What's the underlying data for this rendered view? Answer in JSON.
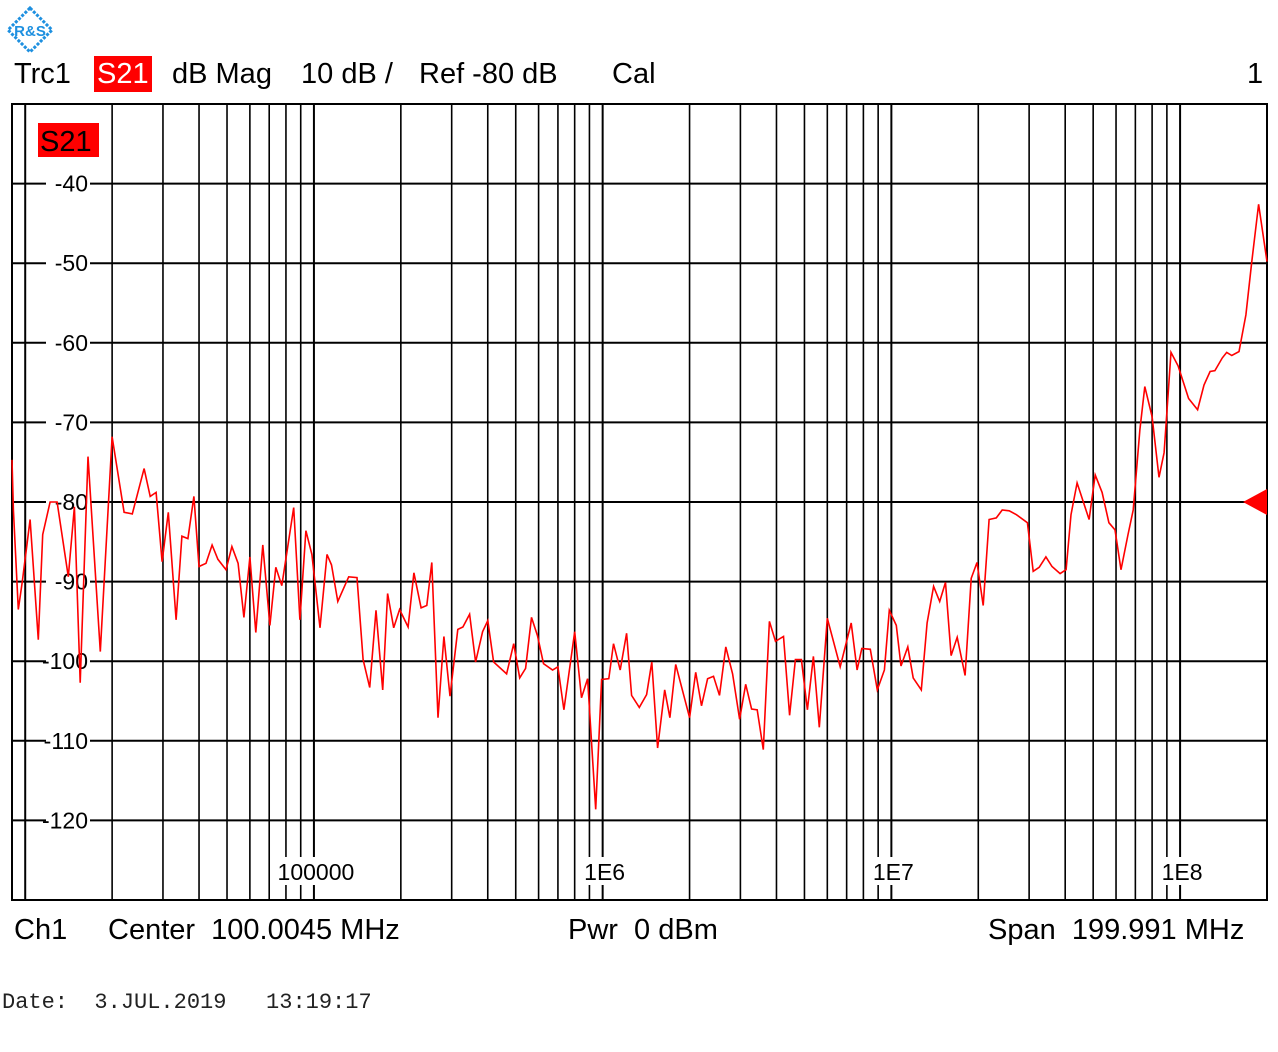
{
  "header": {
    "trace": "Trc1",
    "measurement": "S21",
    "format": "dB Mag",
    "scale": "10 dB /",
    "ref": "Ref -80 dB",
    "cal": "Cal",
    "channel_number": "1"
  },
  "footer": {
    "channel": "Ch1",
    "center": "Center  100.0045 MHz",
    "power": "Pwr  0 dBm",
    "span": "Span  199.991 MHz",
    "date": "Date:  3.JUL.2019   13:19:17"
  },
  "logo_text": "R&S",
  "colors": {
    "trace": "#ff0000",
    "grid": "#000000",
    "logo": "#1e90e0"
  },
  "chart_data": {
    "type": "line",
    "trace_label": "S21",
    "x_scale": "log",
    "xlim": [
      9000,
      200000000
    ],
    "ylim": [
      -130,
      -30
    ],
    "grid": true,
    "y_ticks": [
      -40,
      -50,
      -60,
      -70,
      -80,
      -90,
      -100,
      -110,
      -120
    ],
    "y_tick_labels": [
      "-40",
      "-50",
      "-60",
      "-70",
      "-80",
      "-90",
      "-100",
      "-110",
      "-120"
    ],
    "x_ticks": [
      100000,
      1000000,
      10000000,
      100000000
    ],
    "x_tick_labels": [
      "100000",
      "1E6",
      "1E7",
      "1E8"
    ],
    "reference_level": -80,
    "series": [
      {
        "points": [
          [
            9000,
            -74.7
          ],
          [
            9100,
            -81.0
          ],
          [
            9460,
            -93.5
          ],
          [
            9760,
            -90.1
          ],
          [
            10400,
            -82.2
          ],
          [
            11100,
            -97.3
          ],
          [
            11500,
            -84.1
          ],
          [
            12200,
            -80.0
          ],
          [
            12900,
            -80.0
          ],
          [
            14100,
            -89.4
          ],
          [
            14800,
            -80.6
          ],
          [
            15500,
            -102.7
          ],
          [
            16500,
            -74.3
          ],
          [
            18200,
            -98.8
          ],
          [
            20000,
            -71.8
          ],
          [
            22000,
            -81.3
          ],
          [
            23500,
            -81.5
          ],
          [
            25800,
            -75.8
          ],
          [
            27100,
            -79.3
          ],
          [
            28400,
            -78.8
          ],
          [
            29800,
            -87.5
          ],
          [
            31300,
            -81.3
          ],
          [
            33300,
            -94.8
          ],
          [
            34900,
            -84.3
          ],
          [
            36600,
            -84.6
          ],
          [
            38400,
            -79.3
          ],
          [
            40000,
            -88.1
          ],
          [
            42300,
            -87.7
          ],
          [
            44400,
            -85.4
          ],
          [
            46500,
            -87.2
          ],
          [
            49600,
            -88.5
          ],
          [
            52000,
            -85.6
          ],
          [
            54600,
            -87.7
          ],
          [
            57200,
            -94.5
          ],
          [
            60000,
            -86.9
          ],
          [
            62900,
            -96.4
          ],
          [
            66500,
            -85.4
          ],
          [
            70400,
            -95.5
          ],
          [
            73800,
            -88.2
          ],
          [
            77400,
            -90.5
          ],
          [
            85100,
            -80.7
          ],
          [
            89400,
            -94.8
          ],
          [
            93800,
            -83.6
          ],
          [
            98400,
            -86.6
          ],
          [
            105000,
            -95.8
          ],
          [
            111000,
            -86.6
          ],
          [
            115000,
            -87.9
          ],
          [
            121000,
            -92.5
          ],
          [
            132000,
            -89.4
          ],
          [
            141000,
            -89.5
          ],
          [
            148000,
            -99.8
          ],
          [
            156000,
            -103.3
          ],
          [
            164000,
            -93.6
          ],
          [
            173000,
            -103.6
          ],
          [
            180000,
            -91.5
          ],
          [
            189000,
            -95.8
          ],
          [
            198000,
            -93.5
          ],
          [
            212000,
            -95.7
          ],
          [
            222000,
            -88.9
          ],
          [
            235000,
            -93.3
          ],
          [
            246000,
            -93.0
          ],
          [
            256000,
            -87.6
          ],
          [
            269000,
            -107.1
          ],
          [
            282000,
            -96.9
          ],
          [
            296000,
            -104.4
          ],
          [
            315000,
            -96.0
          ],
          [
            328000,
            -95.7
          ],
          [
            346000,
            -94.1
          ],
          [
            363000,
            -100.1
          ],
          [
            384000,
            -96.3
          ],
          [
            400000,
            -94.9
          ],
          [
            419000,
            -100.1
          ],
          [
            465000,
            -101.6
          ],
          [
            492000,
            -97.8
          ],
          [
            516000,
            -102.1
          ],
          [
            541000,
            -100.9
          ],
          [
            567000,
            -94.5
          ],
          [
            595000,
            -96.8
          ],
          [
            624000,
            -100.3
          ],
          [
            671000,
            -101.1
          ],
          [
            700000,
            -100.7
          ],
          [
            734000,
            -106.1
          ],
          [
            800000,
            -96.3
          ],
          [
            845000,
            -104.6
          ],
          [
            887000,
            -102.2
          ],
          [
            946000,
            -118.6
          ],
          [
            992000,
            -102.3
          ],
          [
            1050000,
            -102.2
          ],
          [
            1090000,
            -97.8
          ],
          [
            1150000,
            -101.1
          ],
          [
            1210000,
            -96.5
          ],
          [
            1260000,
            -104.3
          ],
          [
            1340000,
            -105.8
          ],
          [
            1420000,
            -104.2
          ],
          [
            1480000,
            -100.1
          ],
          [
            1550000,
            -110.9
          ],
          [
            1640000,
            -103.6
          ],
          [
            1710000,
            -107.1
          ],
          [
            1790000,
            -100.4
          ],
          [
            2000000,
            -107.1
          ],
          [
            2100000,
            -101.4
          ],
          [
            2200000,
            -105.6
          ],
          [
            2310000,
            -102.2
          ],
          [
            2420000,
            -101.9
          ],
          [
            2540000,
            -104.3
          ],
          [
            2670000,
            -98.2
          ],
          [
            2820000,
            -101.6
          ],
          [
            2980000,
            -107.3
          ],
          [
            3130000,
            -102.9
          ],
          [
            3280000,
            -106.0
          ],
          [
            3430000,
            -106.1
          ],
          [
            3600000,
            -111.1
          ],
          [
            3780000,
            -95.0
          ],
          [
            3970000,
            -97.5
          ],
          [
            4230000,
            -96.9
          ],
          [
            4440000,
            -106.8
          ],
          [
            4650000,
            -99.8
          ],
          [
            4880000,
            -99.8
          ],
          [
            5120000,
            -106.1
          ],
          [
            5370000,
            -99.4
          ],
          [
            5630000,
            -108.3
          ],
          [
            6000000,
            -94.6
          ],
          [
            6650000,
            -100.7
          ],
          [
            7260000,
            -95.2
          ],
          [
            7610000,
            -101.1
          ],
          [
            7900000,
            -98.4
          ],
          [
            8450000,
            -98.5
          ],
          [
            8940000,
            -103.6
          ],
          [
            9460000,
            -101.1
          ],
          [
            9840000,
            -93.6
          ],
          [
            10400000,
            -95.5
          ],
          [
            10800000,
            -100.6
          ],
          [
            11400000,
            -98.2
          ],
          [
            11900000,
            -102.1
          ],
          [
            12700000,
            -103.6
          ],
          [
            13300000,
            -95.2
          ],
          [
            14000000,
            -90.6
          ],
          [
            14700000,
            -92.5
          ],
          [
            15400000,
            -90.1
          ],
          [
            16100000,
            -99.3
          ],
          [
            16900000,
            -97.0
          ],
          [
            18000000,
            -101.8
          ],
          [
            18900000,
            -89.6
          ],
          [
            19800000,
            -87.6
          ],
          [
            20800000,
            -93.0
          ],
          [
            21800000,
            -82.2
          ],
          [
            23100000,
            -82.0
          ],
          [
            24200000,
            -81.0
          ],
          [
            25600000,
            -81.1
          ],
          [
            27100000,
            -81.6
          ],
          [
            29600000,
            -82.6
          ],
          [
            31000000,
            -88.7
          ],
          [
            32500000,
            -88.2
          ],
          [
            34300000,
            -86.9
          ],
          [
            36000000,
            -88.1
          ],
          [
            38400000,
            -89.0
          ],
          [
            40300000,
            -88.5
          ],
          [
            41900000,
            -81.6
          ],
          [
            44000000,
            -77.6
          ],
          [
            48400000,
            -82.2
          ],
          [
            50800000,
            -76.6
          ],
          [
            53700000,
            -78.8
          ],
          [
            56700000,
            -82.6
          ],
          [
            59500000,
            -83.5
          ],
          [
            62400000,
            -88.5
          ],
          [
            66000000,
            -84.1
          ],
          [
            68800000,
            -81.0
          ],
          [
            72600000,
            -70.9
          ],
          [
            75500000,
            -65.5
          ],
          [
            80000000,
            -69.3
          ],
          [
            84500000,
            -76.9
          ],
          [
            88000000,
            -73.8
          ],
          [
            93000000,
            -61.2
          ],
          [
            98400000,
            -62.9
          ],
          [
            107000000,
            -67.0
          ],
          [
            115000000,
            -68.4
          ],
          [
            121000000,
            -65.3
          ],
          [
            127000000,
            -63.6
          ],
          [
            132000000,
            -63.5
          ],
          [
            140000000,
            -61.9
          ],
          [
            145000000,
            -61.2
          ],
          [
            151000000,
            -61.6
          ],
          [
            160000000,
            -61.1
          ],
          [
            169000000,
            -56.5
          ],
          [
            177000000,
            -49.9
          ],
          [
            187000000,
            -42.6
          ],
          [
            200000000,
            -49.8
          ]
        ]
      }
    ]
  }
}
